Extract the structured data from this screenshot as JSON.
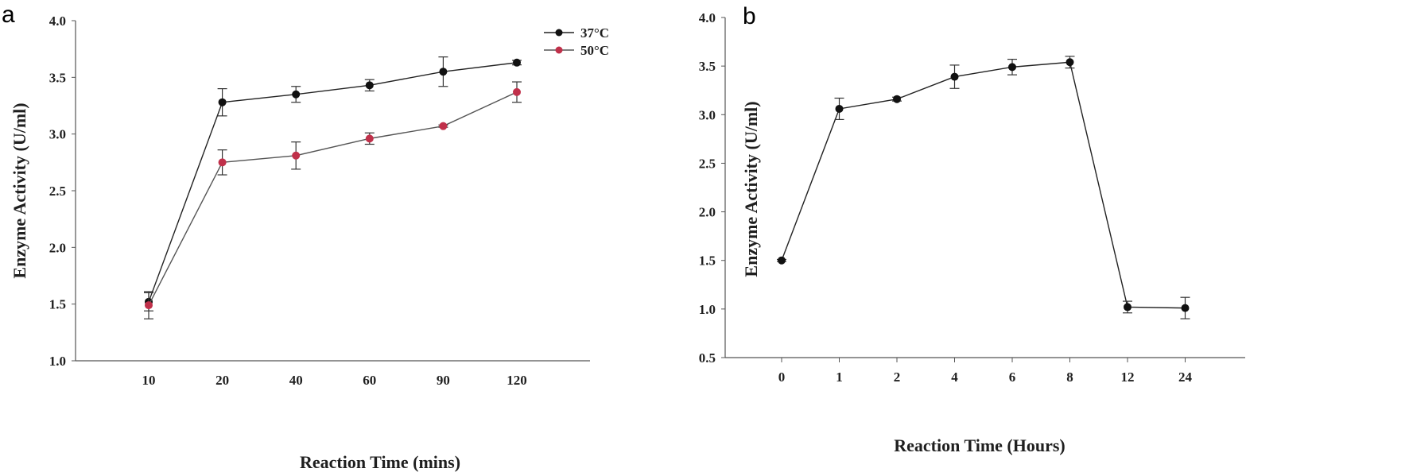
{
  "chart_data": [
    {
      "panel": "a",
      "type": "line",
      "categories": [
        "10",
        "20",
        "40",
        "60",
        "90",
        "120"
      ],
      "xlabel": "Reaction Time (mins)",
      "ylabel": "Enzyme Activity (U/ml)",
      "ylim": [
        1.0,
        4.0
      ],
      "yticks": [
        "1.0",
        "1.5",
        "2.0",
        "2.5",
        "3.0",
        "3.5",
        "4.0"
      ],
      "legend_position": "top-right",
      "series": [
        {
          "name": "37°C",
          "color": "#222222",
          "marker_color": "#111111",
          "values": [
            1.52,
            3.28,
            3.35,
            3.43,
            3.55,
            3.63
          ],
          "errors": [
            0.08,
            0.12,
            0.07,
            0.05,
            0.13,
            0.02
          ]
        },
        {
          "name": "50°C",
          "color": "#555555",
          "marker_color": "#c0304a",
          "values": [
            1.49,
            2.75,
            2.81,
            2.96,
            3.07,
            3.37
          ],
          "errors": [
            0.12,
            0.11,
            0.12,
            0.05,
            0.01,
            0.09
          ]
        }
      ]
    },
    {
      "panel": "b",
      "type": "line",
      "categories": [
        "0",
        "1",
        "2",
        "4",
        "6",
        "8",
        "12",
        "24"
      ],
      "xlabel": "Reaction Time (Hours)",
      "ylabel": "Enzyme Activity (U/ml)",
      "ylim": [
        0.5,
        4.0
      ],
      "yticks": [
        "0.5",
        "1.0",
        "1.5",
        "2.0",
        "2.5",
        "3.0",
        "3.5",
        "4.0"
      ],
      "series": [
        {
          "color": "#222222",
          "marker_color": "#111111",
          "values": [
            1.5,
            3.06,
            3.16,
            3.39,
            3.49,
            3.54,
            1.02,
            1.01
          ],
          "errors": [
            0.01,
            0.11,
            0.02,
            0.12,
            0.08,
            0.06,
            0.06,
            0.11
          ]
        }
      ]
    }
  ]
}
